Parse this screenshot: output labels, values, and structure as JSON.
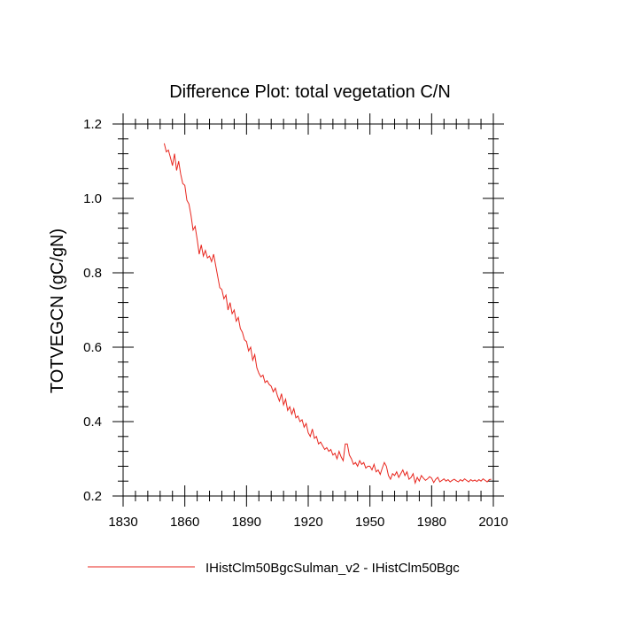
{
  "chart_data": {
    "type": "line",
    "title": "Difference Plot: total vegetation C/N",
    "xlabel": "",
    "ylabel": "TOTVEGCN  (gC/gN)",
    "xlim": [
      1830,
      2010
    ],
    "ylim": [
      0.2,
      1.2
    ],
    "x_major_ticks": [
      1830,
      1860,
      1890,
      1920,
      1950,
      1980,
      2010
    ],
    "x_tick_labels": [
      "1830",
      "1860",
      "1890",
      "1920",
      "1950",
      "1980",
      "2010"
    ],
    "y_major_ticks": [
      0.2,
      0.4,
      0.6,
      0.8,
      1.0,
      1.2
    ],
    "y_tick_labels": [
      "0.2",
      "0.4",
      "0.6",
      "0.8",
      "1.0",
      "1.2"
    ],
    "grid": false,
    "legend_position": "bottom",
    "colors": {
      "series": "#e8261e",
      "axis": "#000000"
    },
    "series": [
      {
        "name": "IHistClm50BgcSulman_v2 - IHistClm50Bgc",
        "x_start": 1850,
        "x_step": 1,
        "values": [
          1.148,
          1.125,
          1.13,
          1.11,
          1.088,
          1.12,
          1.075,
          1.1,
          1.065,
          1.04,
          1.035,
          0.995,
          0.985,
          0.955,
          0.915,
          0.925,
          0.89,
          0.85,
          0.875,
          0.845,
          0.86,
          0.84,
          0.845,
          0.83,
          0.85,
          0.82,
          0.79,
          0.76,
          0.755,
          0.73,
          0.74,
          0.7,
          0.72,
          0.69,
          0.7,
          0.67,
          0.68,
          0.65,
          0.64,
          0.62,
          0.615,
          0.59,
          0.6,
          0.565,
          0.58,
          0.545,
          0.53,
          0.52,
          0.525,
          0.505,
          0.51,
          0.5,
          0.495,
          0.48,
          0.49,
          0.47,
          0.455,
          0.475,
          0.445,
          0.46,
          0.43,
          0.44,
          0.42,
          0.435,
          0.41,
          0.415,
          0.4,
          0.405,
          0.385,
          0.395,
          0.37,
          0.36,
          0.38,
          0.355,
          0.36,
          0.34,
          0.345,
          0.335,
          0.325,
          0.33,
          0.32,
          0.325,
          0.31,
          0.315,
          0.3,
          0.32,
          0.305,
          0.295,
          0.34,
          0.34,
          0.31,
          0.3,
          0.285,
          0.29,
          0.28,
          0.295,
          0.285,
          0.29,
          0.275,
          0.28,
          0.28,
          0.27,
          0.285,
          0.265,
          0.27,
          0.258,
          0.275,
          0.29,
          0.28,
          0.255,
          0.245,
          0.26,
          0.255,
          0.265,
          0.25,
          0.26,
          0.27,
          0.255,
          0.265,
          0.245,
          0.25,
          0.26,
          0.235,
          0.25,
          0.24,
          0.255,
          0.248,
          0.242,
          0.246,
          0.252,
          0.248,
          0.236,
          0.245,
          0.25,
          0.238,
          0.242,
          0.246,
          0.24,
          0.244,
          0.238,
          0.242,
          0.245,
          0.241,
          0.238,
          0.244,
          0.24,
          0.246,
          0.242,
          0.238,
          0.244,
          0.24,
          0.243,
          0.239,
          0.244,
          0.24,
          0.246,
          0.242,
          0.238,
          0.244,
          0.245
        ]
      }
    ]
  }
}
